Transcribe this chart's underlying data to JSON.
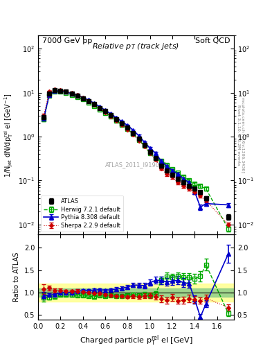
{
  "title_left": "7000 GeV pp",
  "title_right": "Soft QCD",
  "plot_title": "Relative p$_{T}$ (track jets)",
  "ylabel_main": "1/N$_{jet}$ dN/dp$^{rel}_{T}$ el [GeV$^{-1}$]",
  "ylabel_ratio": "Ratio to ATLAS",
  "xlabel": "Charged particle p$^{rel}_{T}$ el [GeV]",
  "watermark": "ATLAS_2011_I919017",
  "rivet_label": "Rivet 3.1.10, ≥ 3.2M events",
  "mcplots_label": "mcplots.cern.ch [arXiv:1306.3436]",
  "atlas_x": [
    0.05,
    0.1,
    0.15,
    0.2,
    0.25,
    0.3,
    0.35,
    0.4,
    0.45,
    0.5,
    0.55,
    0.6,
    0.65,
    0.7,
    0.75,
    0.8,
    0.85,
    0.9,
    0.95,
    1.0,
    1.05,
    1.1,
    1.15,
    1.2,
    1.25,
    1.3,
    1.35,
    1.4,
    1.45,
    1.5,
    1.7
  ],
  "atlas_y": [
    2.8,
    9.5,
    11.5,
    11.0,
    10.5,
    9.5,
    8.5,
    7.5,
    6.5,
    5.5,
    4.5,
    3.8,
    3.1,
    2.5,
    2.0,
    1.6,
    1.2,
    0.9,
    0.65,
    0.45,
    0.33,
    0.22,
    0.17,
    0.135,
    0.11,
    0.09,
    0.075,
    0.065,
    0.055,
    0.04,
    0.015
  ],
  "atlas_yerr": [
    0.3,
    0.5,
    0.5,
    0.5,
    0.4,
    0.4,
    0.35,
    0.3,
    0.25,
    0.22,
    0.18,
    0.15,
    0.12,
    0.1,
    0.08,
    0.07,
    0.06,
    0.05,
    0.04,
    0.03,
    0.025,
    0.018,
    0.014,
    0.012,
    0.01,
    0.008,
    0.007,
    0.006,
    0.005,
    0.004,
    0.002
  ],
  "herwig_x": [
    0.05,
    0.1,
    0.15,
    0.2,
    0.25,
    0.3,
    0.35,
    0.4,
    0.45,
    0.5,
    0.55,
    0.6,
    0.65,
    0.7,
    0.75,
    0.8,
    0.85,
    0.9,
    0.95,
    1.0,
    1.05,
    1.1,
    1.15,
    1.2,
    1.25,
    1.3,
    1.35,
    1.4,
    1.45,
    1.5,
    1.7
  ],
  "herwig_y": [
    2.5,
    8.5,
    10.5,
    10.5,
    10.0,
    9.0,
    8.0,
    7.0,
    6.0,
    5.0,
    4.2,
    3.5,
    2.9,
    2.3,
    1.85,
    1.5,
    1.15,
    0.85,
    0.62,
    0.42,
    0.32,
    0.28,
    0.23,
    0.18,
    0.15,
    0.12,
    0.1,
    0.085,
    0.075,
    0.065,
    0.008
  ],
  "herwig_yerr": [
    0.25,
    0.4,
    0.4,
    0.4,
    0.35,
    0.35,
    0.3,
    0.25,
    0.22,
    0.18,
    0.15,
    0.12,
    0.1,
    0.08,
    0.07,
    0.06,
    0.05,
    0.04,
    0.035,
    0.028,
    0.022,
    0.018,
    0.015,
    0.012,
    0.01,
    0.009,
    0.008,
    0.007,
    0.006,
    0.005,
    0.001
  ],
  "pythia_x": [
    0.05,
    0.1,
    0.15,
    0.2,
    0.25,
    0.3,
    0.35,
    0.4,
    0.45,
    0.5,
    0.55,
    0.6,
    0.65,
    0.7,
    0.75,
    0.8,
    0.85,
    0.9,
    0.95,
    1.0,
    1.05,
    1.1,
    1.15,
    1.2,
    1.25,
    1.3,
    1.35,
    1.4,
    1.45,
    1.5,
    1.7
  ],
  "pythia_y": [
    2.6,
    9.0,
    11.0,
    11.0,
    10.5,
    9.5,
    8.8,
    7.8,
    6.8,
    5.8,
    4.8,
    4.0,
    3.3,
    2.7,
    2.2,
    1.8,
    1.4,
    1.05,
    0.75,
    0.55,
    0.42,
    0.28,
    0.21,
    0.17,
    0.14,
    0.11,
    0.09,
    0.055,
    0.025,
    0.03,
    0.028
  ],
  "pythia_yerr": [
    0.25,
    0.4,
    0.4,
    0.4,
    0.35,
    0.35,
    0.3,
    0.25,
    0.22,
    0.18,
    0.15,
    0.12,
    0.1,
    0.09,
    0.08,
    0.07,
    0.06,
    0.05,
    0.04,
    0.03,
    0.025,
    0.018,
    0.015,
    0.012,
    0.01,
    0.009,
    0.007,
    0.006,
    0.004,
    0.003,
    0.003
  ],
  "sherpa_x": [
    0.05,
    0.1,
    0.15,
    0.2,
    0.25,
    0.3,
    0.35,
    0.4,
    0.45,
    0.5,
    0.55,
    0.6,
    0.65,
    0.7,
    0.75,
    0.8,
    0.85,
    0.9,
    0.95,
    1.0,
    1.05,
    1.1,
    1.15,
    1.2,
    1.25,
    1.3,
    1.35,
    1.4,
    1.45,
    1.5,
    1.7
  ],
  "sherpa_y": [
    3.0,
    10.5,
    12.0,
    11.5,
    10.8,
    9.8,
    8.8,
    7.6,
    6.5,
    5.4,
    4.4,
    3.6,
    2.9,
    2.3,
    1.85,
    1.45,
    1.1,
    0.82,
    0.6,
    0.42,
    0.3,
    0.19,
    0.14,
    0.12,
    0.09,
    0.075,
    0.065,
    0.055,
    0.045,
    0.035,
    0.01
  ],
  "sherpa_yerr": [
    0.3,
    0.5,
    0.5,
    0.45,
    0.4,
    0.35,
    0.3,
    0.25,
    0.22,
    0.18,
    0.15,
    0.12,
    0.1,
    0.08,
    0.07,
    0.06,
    0.05,
    0.04,
    0.035,
    0.028,
    0.022,
    0.016,
    0.012,
    0.01,
    0.008,
    0.007,
    0.006,
    0.005,
    0.004,
    0.003,
    0.001
  ],
  "atlas_color": "#000000",
  "herwig_color": "#00aa00",
  "pythia_color": "#0000cc",
  "sherpa_color": "#cc0000",
  "band_yellow": [
    0.8,
    1.2
  ],
  "band_green": [
    0.9,
    1.1
  ],
  "xlim": [
    0.0,
    1.75
  ],
  "ylim_main": [
    0.006,
    200
  ],
  "ylim_ratio": [
    0.4,
    2.3
  ]
}
